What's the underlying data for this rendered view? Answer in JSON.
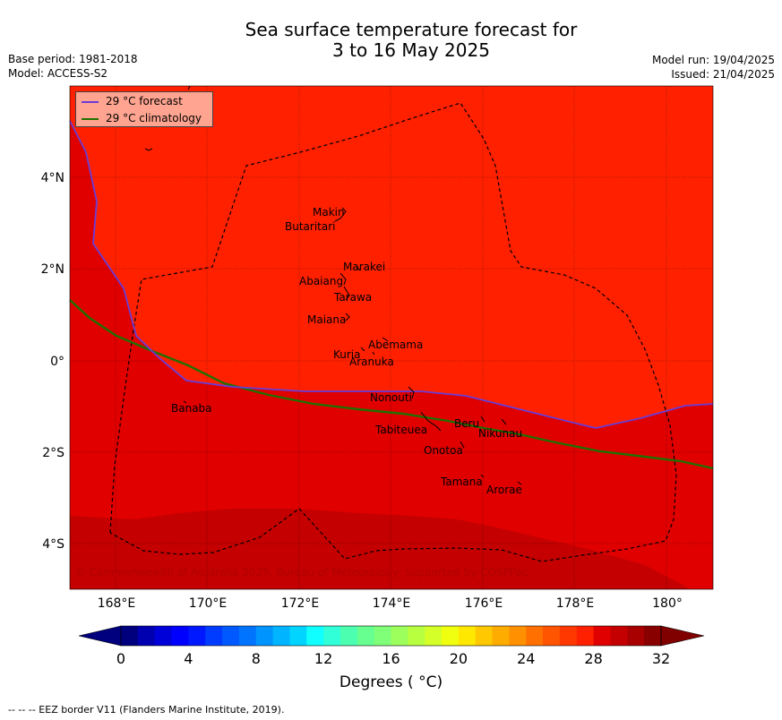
{
  "title_line1": "Sea surface temperature forecast for",
  "title_line2": "3 to 16 May 2025",
  "meta_left": [
    "Base period: 1981-2018",
    "Model: ACCESS-S2"
  ],
  "meta_right": [
    "Model run: 19/04/2025",
    "Issued: 21/04/2025"
  ],
  "map": {
    "lon_ticks": [
      "168°E",
      "170°E",
      "172°E",
      "174°E",
      "176°E",
      "178°E",
      "180°"
    ],
    "lat_ticks": [
      "4°N",
      "2°N",
      "0°",
      "2°S",
      "4°S"
    ],
    "island_labels": [
      "Makin",
      "Butaritari",
      "Marakei",
      "Abaiang",
      "Tarawa",
      "Maiana",
      "Abemama",
      "Kuria",
      "Aranuka",
      "Nonouti",
      "Banaba",
      "Beru",
      "Tabiteuea",
      "Nikunau",
      "Onotoa",
      "Tamana",
      "Arorae"
    ],
    "copyright": "© Commonwealth of Australia 2025, Bureau of Meteorology, supported by COSPPac",
    "colors": {
      "warm_28_30": "#ff2000",
      "warm_30_31": "#e00000",
      "warm_31_32": "#c40000",
      "forecast_line": "#6a3cd6",
      "climatology_line": "#217000"
    }
  },
  "legend": {
    "forecast_label": "29 °C  forecast",
    "climatology_label": "29 °C  climatology"
  },
  "colorbar": {
    "tick_labels": [
      "0",
      "4",
      "8",
      "12",
      "16",
      "20",
      "24",
      "28",
      "32"
    ],
    "title": "Degrees ( °C)",
    "colors": [
      "#00007f",
      "#0000b0",
      "#0000d8",
      "#0000ff",
      "#0018ff",
      "#003cff",
      "#0058ff",
      "#0074ff",
      "#0094ff",
      "#00b4ff",
      "#00d4ff",
      "#10ffff",
      "#30ffd8",
      "#4cffb0",
      "#66ff90",
      "#80ff78",
      "#9cff5c",
      "#b8ff40",
      "#d4ff28",
      "#f0ff10",
      "#ffe800",
      "#ffc800",
      "#ffac00",
      "#ff9000",
      "#ff7000",
      "#ff5400",
      "#ff3800",
      "#ff2000",
      "#e00000",
      "#c40000",
      "#a80000",
      "#880000"
    ],
    "under_color": "#00007f",
    "over_color": "#800000"
  },
  "footnote": "--  --  -- EEZ border V11 (Flanders Marine Institute, 2019)."
}
